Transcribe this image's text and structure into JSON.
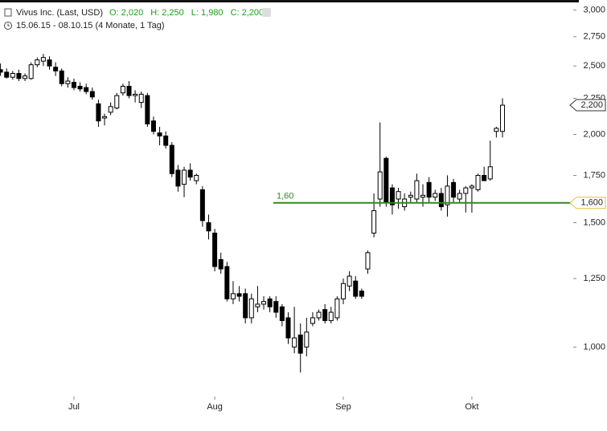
{
  "header": {
    "title": "Vivus Inc. (Last, USD)",
    "ohlc": [
      "O: 2,020",
      "H: 2,250",
      "L: 1,980",
      "C: 2,200"
    ],
    "range": "15.06.15 - 08.10.15 (4 Monate, 1 Tag)"
  },
  "chart_data": {
    "type": "candlestick",
    "log_scale": true,
    "ylim": [
      0.86,
      3.1
    ],
    "yticks": [
      {
        "value": 1,
        "label": "1,000"
      },
      {
        "value": 1.25,
        "label": "1,250"
      },
      {
        "value": 1.5,
        "label": "1,500"
      },
      {
        "value": 1.75,
        "label": "1,750"
      },
      {
        "value": 2,
        "label": "2,000"
      },
      {
        "value": 2.25,
        "label": "2,250"
      },
      {
        "value": 2.5,
        "label": "2,500"
      },
      {
        "value": 2.75,
        "label": "2,750"
      },
      {
        "value": 3,
        "label": "3,000"
      }
    ],
    "categories": [
      null,
      null,
      null,
      null,
      null,
      null,
      null,
      null,
      null,
      null,
      null,
      null,
      "Jul",
      null,
      null,
      null,
      null,
      null,
      null,
      null,
      null,
      null,
      null,
      null,
      null,
      null,
      null,
      null,
      null,
      null,
      null,
      null,
      null,
      null,
      null,
      "Aug",
      null,
      null,
      null,
      null,
      null,
      null,
      null,
      null,
      null,
      null,
      null,
      null,
      null,
      null,
      null,
      null,
      null,
      null,
      null,
      null,
      "Sep",
      null,
      null,
      null,
      null,
      null,
      null,
      null,
      null,
      null,
      null,
      null,
      null,
      null,
      null,
      null,
      null,
      null,
      null,
      null,
      null,
      "Okt",
      null,
      null,
      null,
      null,
      null
    ],
    "open": [
      2.47,
      2.45,
      2.41,
      2.44,
      2.4,
      2.4,
      2.51,
      2.54,
      2.55,
      2.49,
      2.46,
      2.36,
      2.37,
      2.34,
      2.33,
      2.3,
      2.21,
      2.11,
      2.15,
      2.18,
      2.29,
      2.34,
      2.27,
      2.22,
      2.27,
      2.09,
      2.01,
      1.99,
      1.93,
      1.78,
      1.7,
      1.78,
      1.72,
      1.67,
      1.5,
      1.45,
      1.33,
      1.3,
      1.17,
      1.19,
      1.19,
      1.1,
      1.14,
      1.15,
      1.17,
      1.16,
      1.14,
      1.1,
      1.0,
      1.04,
      1.0,
      1.08,
      1.1,
      1.13,
      1.09,
      1.1,
      1.17,
      1.22,
      1.24,
      1.2,
      1.29,
      1.45,
      1.62,
      1.85,
      1.68,
      1.62,
      1.58,
      1.63,
      1.62,
      1.63,
      1.71,
      1.63,
      1.65,
      1.59,
      1.71,
      1.62,
      1.65,
      1.68,
      1.67,
      1.75,
      1.73,
      2.02,
      2.02
    ],
    "high": [
      2.52,
      2.48,
      2.46,
      2.47,
      2.44,
      2.53,
      2.57,
      2.6,
      2.58,
      2.53,
      2.48,
      2.41,
      2.4,
      2.37,
      2.36,
      2.33,
      2.24,
      2.14,
      2.22,
      2.29,
      2.36,
      2.38,
      2.31,
      2.3,
      2.29,
      2.12,
      2.05,
      2.02,
      1.95,
      1.81,
      1.8,
      1.82,
      1.76,
      1.69,
      1.54,
      1.47,
      1.36,
      1.32,
      1.24,
      1.22,
      1.21,
      1.19,
      1.22,
      1.18,
      1.18,
      1.18,
      1.15,
      1.12,
      1.14,
      1.08,
      1.1,
      1.12,
      1.13,
      1.15,
      1.14,
      1.18,
      1.25,
      1.28,
      1.26,
      1.21,
      1.37,
      1.65,
      2.08,
      1.86,
      1.7,
      1.68,
      1.65,
      1.66,
      1.76,
      1.7,
      1.74,
      1.67,
      1.68,
      1.75,
      1.73,
      1.67,
      1.69,
      1.7,
      1.76,
      1.8,
      1.96,
      2.05,
      2.25
    ],
    "low": [
      2.42,
      2.4,
      2.39,
      2.38,
      2.38,
      2.39,
      2.49,
      2.5,
      2.47,
      2.42,
      2.34,
      2.33,
      2.31,
      2.3,
      2.28,
      2.24,
      2.05,
      2.06,
      2.13,
      2.17,
      2.27,
      2.25,
      2.22,
      2.18,
      2.05,
      2.0,
      1.93,
      1.91,
      1.74,
      1.66,
      1.63,
      1.72,
      1.7,
      1.48,
      1.42,
      1.28,
      1.27,
      1.16,
      1.15,
      1.16,
      1.08,
      1.08,
      1.12,
      1.13,
      1.12,
      1.1,
      1.07,
      1.01,
      0.98,
      0.92,
      0.97,
      1.07,
      1.09,
      1.08,
      1.08,
      1.09,
      1.15,
      1.2,
      1.17,
      1.17,
      1.27,
      1.43,
      1.58,
      1.58,
      1.54,
      1.57,
      1.56,
      1.6,
      1.6,
      1.58,
      1.6,
      1.61,
      1.56,
      1.53,
      1.6,
      1.6,
      1.55,
      1.55,
      1.66,
      1.72,
      1.72,
      1.98,
      1.98
    ],
    "close": [
      2.45,
      2.41,
      2.44,
      2.4,
      2.42,
      2.51,
      2.55,
      2.57,
      2.5,
      2.46,
      2.36,
      2.38,
      2.33,
      2.32,
      2.3,
      2.26,
      2.09,
      2.12,
      2.19,
      2.27,
      2.34,
      2.27,
      2.28,
      2.28,
      2.07,
      2.02,
      1.99,
      1.93,
      1.76,
      1.69,
      1.78,
      1.74,
      1.75,
      1.51,
      1.46,
      1.3,
      1.29,
      1.17,
      1.19,
      1.18,
      1.1,
      1.17,
      1.15,
      1.16,
      1.14,
      1.12,
      1.09,
      1.03,
      1.03,
      0.98,
      1.05,
      1.1,
      1.12,
      1.09,
      1.12,
      1.17,
      1.23,
      1.26,
      1.18,
      1.18,
      1.36,
      1.56,
      1.77,
      1.6,
      1.59,
      1.66,
      1.62,
      1.64,
      1.72,
      1.64,
      1.63,
      1.65,
      1.58,
      1.69,
      1.63,
      1.65,
      1.68,
      1.69,
      1.75,
      1.72,
      1.8,
      2.04,
      2.2
    ],
    "hline": {
      "value": 1.6,
      "label": "1,60",
      "tag": "1,600",
      "color": "#2e8b1e"
    },
    "last_tag": {
      "value": 2.2,
      "label": "2,200"
    },
    "up_color": "#ffffff",
    "down_color": "#000000"
  }
}
